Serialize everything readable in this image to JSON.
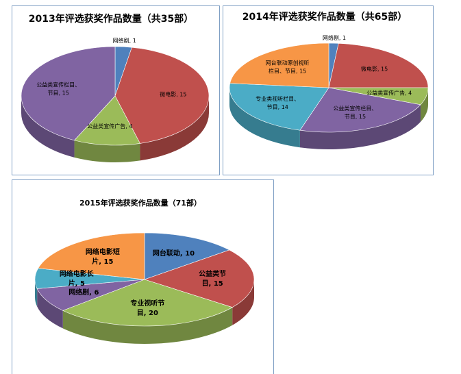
{
  "chart_data": [
    {
      "type": "pie",
      "title": "2013年评选获奖作品数量（共35部）",
      "values": [
        1,
        15,
        4,
        15
      ],
      "value_labels": [
        [
          "网络剧, 1"
        ],
        [
          "微电影, 15"
        ],
        [
          "公益类宣传广告, 4"
        ],
        [
          "公益类宣传栏目、",
          "节目, 15"
        ]
      ],
      "colors": [
        "#4f81bd",
        "#c0504d",
        "#9bbb59",
        "#8064a2"
      ]
    },
    {
      "type": "pie",
      "title": "2014年评选获奖作品数量（共65部）",
      "values": [
        1,
        15,
        4,
        15,
        14,
        15
      ],
      "value_labels": [
        [
          "网络剧, 1"
        ],
        [
          "微电影, 15"
        ],
        [
          "公益类宣传广告, 4"
        ],
        [
          "公益类宣传栏目、",
          "节目, 15"
        ],
        [
          "专业类视听栏目、",
          "节目, 14"
        ],
        [
          "网台联动原创视听",
          "栏目、节目, 15"
        ]
      ],
      "colors": [
        "#4f81bd",
        "#c0504d",
        "#9bbb59",
        "#8064a2",
        "#4bacc6",
        "#f79646"
      ]
    },
    {
      "type": "pie",
      "title": "2015年评选获奖作品数量（71部）",
      "values": [
        10,
        15,
        20,
        6,
        5,
        15
      ],
      "value_labels": [
        [
          "网台联动, 10"
        ],
        [
          "公益类节",
          "目, 15"
        ],
        [
          "专业视听节",
          "目, 20"
        ],
        [
          "网络剧, 6"
        ],
        [
          "网络电影长",
          "片, 5"
        ],
        [
          "网络电影短",
          "片, 15"
        ]
      ],
      "colors": [
        "#4f81bd",
        "#c0504d",
        "#9bbb59",
        "#8064a2",
        "#4bacc6",
        "#f79646"
      ]
    }
  ]
}
